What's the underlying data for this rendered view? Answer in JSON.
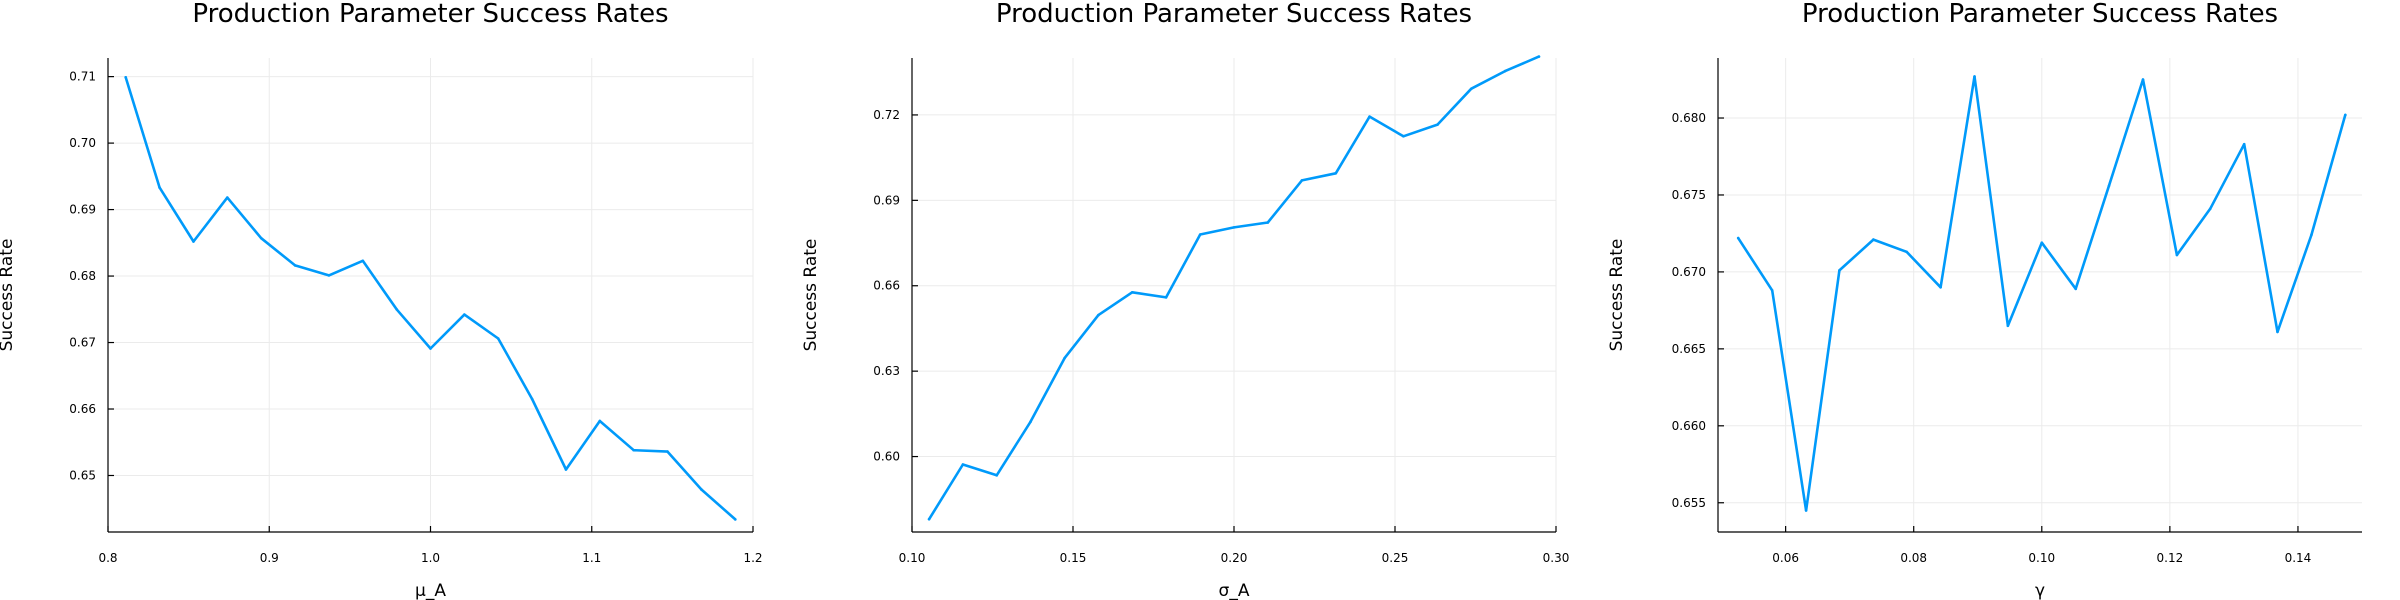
{
  "colors": {
    "series": "#009AFA"
  },
  "chart_data": [
    {
      "type": "line",
      "title": "Production Parameter Success Rates",
      "xlabel": "μ_A",
      "ylabel": "Success Rate",
      "grid": true,
      "legend": "none",
      "xlim": [
        0.8,
        1.2
      ],
      "ylim": [
        0.6415,
        0.7128
      ],
      "xticks": [
        "0.8",
        "0.9",
        "1.0",
        "1.1",
        "1.2"
      ],
      "yticks": [
        "0.65",
        "0.66",
        "0.67",
        "0.68",
        "0.69",
        "0.70",
        "0.71"
      ],
      "x": [
        0.811,
        0.832,
        0.853,
        0.874,
        0.895,
        0.916,
        0.937,
        0.958,
        0.979,
        1.0,
        1.021,
        1.042,
        1.063,
        1.084,
        1.105,
        1.126,
        1.147,
        1.168,
        1.189
      ],
      "y": [
        0.7099,
        0.6933,
        0.6852,
        0.6918,
        0.6857,
        0.6816,
        0.6801,
        0.6823,
        0.675,
        0.6691,
        0.6742,
        0.6706,
        0.6615,
        0.6509,
        0.6582,
        0.6538,
        0.6536,
        0.6479,
        0.6434
      ]
    },
    {
      "type": "line",
      "title": "Production Parameter Success Rates",
      "xlabel": "σ_A",
      "ylabel": "Success Rate",
      "grid": true,
      "legend": "none",
      "xlim": [
        0.1,
        0.3
      ],
      "ylim": [
        0.5735,
        0.74
      ],
      "xticks": [
        "0.10",
        "0.15",
        "0.20",
        "0.25",
        "0.30"
      ],
      "yticks": [
        "0.60",
        "0.63",
        "0.66",
        "0.69",
        "0.72"
      ],
      "x": [
        0.1053,
        0.1158,
        0.1263,
        0.1368,
        0.1474,
        0.1579,
        0.1684,
        0.1789,
        0.1895,
        0.2,
        0.2105,
        0.2211,
        0.2316,
        0.2421,
        0.2526,
        0.2632,
        0.2737,
        0.2842,
        0.2947
      ],
      "y": [
        0.578,
        0.5972,
        0.5934,
        0.6122,
        0.6346,
        0.6497,
        0.6577,
        0.6559,
        0.678,
        0.6805,
        0.6822,
        0.697,
        0.6995,
        0.7194,
        0.7125,
        0.7166,
        0.7292,
        0.7354,
        0.7405
      ]
    },
    {
      "type": "line",
      "title": "Production Parameter Success Rates",
      "xlabel": "γ",
      "ylabel": "Success Rate",
      "grid": true,
      "legend": "none",
      "xlim": [
        0.04944,
        0.15
      ],
      "ylim": [
        0.6531,
        0.6839
      ],
      "xticks": [
        "0.06",
        "0.08",
        "0.10",
        "0.12",
        "0.14"
      ],
      "yticks": [
        "0.655",
        "0.660",
        "0.665",
        "0.670",
        "0.675",
        "0.680"
      ],
      "x": [
        0.0526,
        0.0579,
        0.0632,
        0.0684,
        0.0737,
        0.0789,
        0.0842,
        0.0895,
        0.0947,
        0.1,
        0.1053,
        0.1105,
        0.1158,
        0.1211,
        0.1263,
        0.1316,
        0.1368,
        0.1421,
        0.1474
      ],
      "y": [
        0.6722,
        0.6688,
        0.6545,
        0.6701,
        0.6721,
        0.6713,
        0.669,
        0.6827,
        0.6665,
        0.6719,
        0.6689,
        0.6756,
        0.6825,
        0.6711,
        0.6741,
        0.6783,
        0.6661,
        0.6724,
        0.6802
      ]
    }
  ]
}
